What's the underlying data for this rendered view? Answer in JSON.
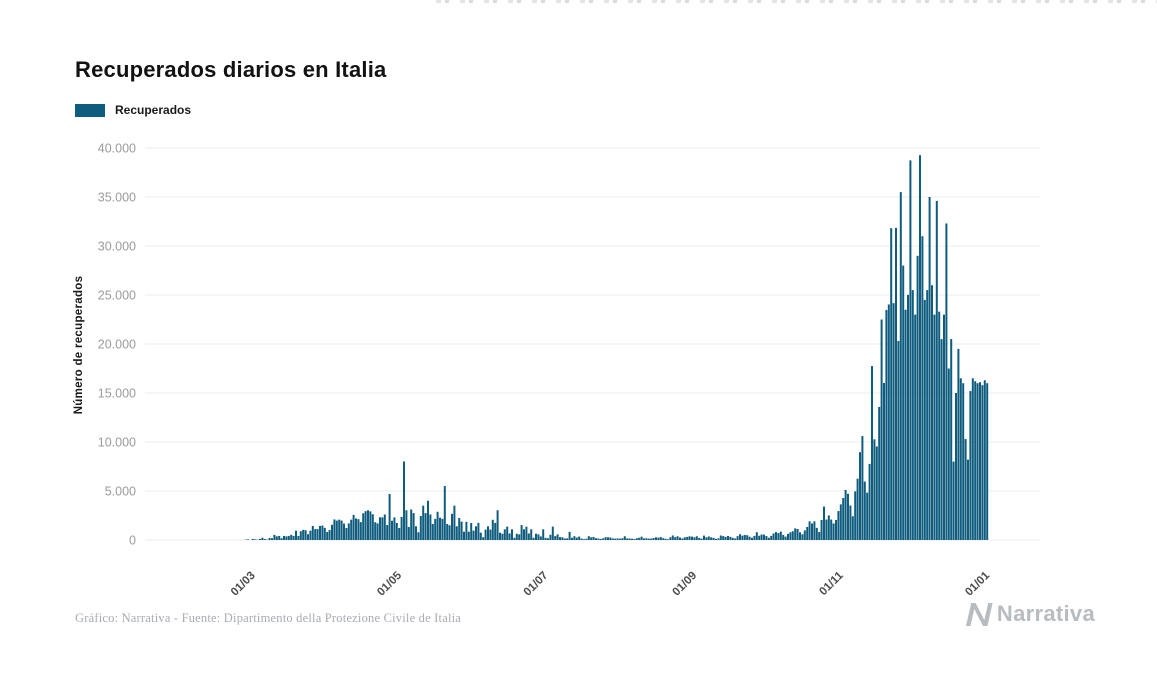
{
  "page": {
    "title": "Recuperados diarios en Italia",
    "footer": "Gráfico: Narrativa - Fuente: Dipartimento della Protezione Civile de Italia",
    "brand": "Narrativa"
  },
  "legend": {
    "label": "Recuperados",
    "color": "#0f5c7f"
  },
  "chart_data": {
    "type": "bar",
    "title": "Recuperados diarios en Italia",
    "series_name": "Recuperados",
    "xlabel": "",
    "ylabel": "Número de recuperados",
    "ylim": [
      0,
      40000
    ],
    "grid": true,
    "legend_position": "top-left",
    "bar_color": "#0f5c7f",
    "y_ticks": [
      {
        "value": 0,
        "label": "0"
      },
      {
        "value": 5000,
        "label": "5.000"
      },
      {
        "value": 10000,
        "label": "10.000"
      },
      {
        "value": 15000,
        "label": "15.000"
      },
      {
        "value": 20000,
        "label": "20.000"
      },
      {
        "value": 25000,
        "label": "25.000"
      },
      {
        "value": 30000,
        "label": "30.000"
      },
      {
        "value": 35000,
        "label": "35.000"
      },
      {
        "value": 40000,
        "label": "40.000"
      }
    ],
    "x_ticks": [
      {
        "label": "01/03",
        "index": 4
      },
      {
        "label": "01/05",
        "index": 65
      },
      {
        "label": "01/07",
        "index": 126
      },
      {
        "label": "01/09",
        "index": 188
      },
      {
        "label": "01/11",
        "index": 249
      },
      {
        "label": "01/01",
        "index": 310
      }
    ],
    "values": [
      1,
      3,
      4,
      2,
      40,
      66,
      11,
      109,
      66,
      33,
      102,
      235,
      102,
      41,
      213,
      181,
      527,
      369,
      414,
      192,
      415,
      369,
      414,
      526,
      415,
      952,
      408,
      894,
      1036,
      999,
      589,
      952,
      1434,
      1109,
      1118,
      1431,
      1480,
      1238,
      819,
      1022,
      1555,
      2099,
      1979,
      2079,
      1985,
      1677,
      1224,
      1695,
      2072,
      2563,
      2200,
      2128,
      1822,
      2723,
      2943,
      3033,
      2922,
      2622,
      1808,
      1696,
      2317,
      2311,
      2605,
      1528,
      4693,
      1965,
      2304,
      1740,
      1225,
      2352,
      8014,
      3031,
      1327,
      3113,
      2747,
      1401,
      792,
      2452,
      3502,
      2747,
      4008,
      2605,
      1639,
      2150,
      2881,
      2278,
      2160,
      5503,
      1639,
      1502,
      2677,
      3503,
      1399,
      2240,
      1874,
      848,
      1854,
      846,
      1737,
      957,
      1399,
      1747,
      747,
      280,
      1062,
      1399,
      1062,
      2062,
      1747,
      3038,
      747,
      640,
      1089,
      1363,
      667,
      1089,
      224,
      640,
      577,
      1526,
      1089,
      1363,
      667,
      1089,
      224,
      640,
      577,
      366,
      1089,
      223,
      183,
      533,
      1366,
      396,
      574,
      295,
      276,
      155,
      169,
      825,
      230,
      386,
      249,
      348,
      147,
      80,
      129,
      390,
      275,
      306,
      178,
      153,
      109,
      170,
      288,
      275,
      255,
      154,
      138,
      159,
      134,
      183,
      384,
      167,
      153,
      134,
      91,
      182,
      225,
      338,
      160,
      174,
      144,
      148,
      203,
      277,
      240,
      296,
      184,
      131,
      83,
      284,
      463,
      292,
      382,
      253,
      158,
      270,
      316,
      378,
      343,
      276,
      380,
      209,
      136,
      448,
      276,
      362,
      271,
      218,
      115,
      163,
      461,
      401,
      319,
      409,
      323,
      218,
      153,
      395,
      591,
      445,
      519,
      486,
      336,
      224,
      419,
      796,
      434,
      561,
      546,
      407,
      230,
      426,
      676,
      810,
      704,
      855,
      520,
      346,
      625,
      788,
      894,
      1186,
      1123,
      789,
      585,
      979,
      1331,
      1908,
      1686,
      1908,
      1242,
      817,
      2046,
      3416,
      2086,
      2507,
      2089,
      1689,
      2046,
      2954,
      3637,
      4285,
      5103,
      4718,
      3520,
      2423,
      4961,
      6258,
      8960,
      10604,
      5966,
      4835,
      7765,
      17750,
      10270,
      9546,
      13574,
      22500,
      16026,
      23474,
      24031,
      31819,
      24169,
      31852,
      20315,
      35500,
      28000,
      23500,
      25010,
      38740,
      25500,
      23000,
      29000,
      39266,
      31000,
      24500,
      25500,
      35000,
      26000,
      23000,
      34600,
      23300,
      20500,
      23000,
      32300,
      17500,
      20500,
      8000,
      15000,
      19500,
      16500,
      16000,
      10300,
      8200,
      15200,
      16500,
      16200,
      16000,
      16100,
      15800,
      16300,
      16000
    ]
  }
}
